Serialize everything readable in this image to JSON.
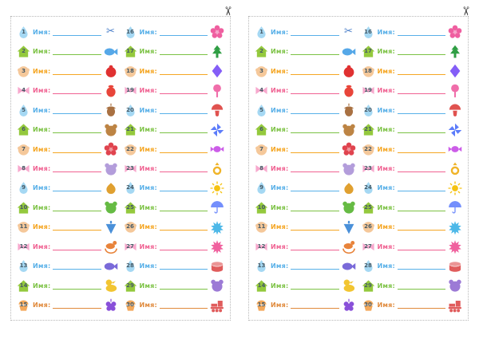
{
  "sheet": {
    "label_word": "Имя:"
  },
  "cut_mark": {
    "glyph": "✂"
  },
  "badges": {
    "drop": {
      "shape": "drop",
      "color": "#a5d8f3"
    },
    "house": {
      "shape": "house",
      "color": "#94c93d"
    },
    "face": {
      "shape": "face",
      "color": "#f5c89a"
    },
    "bow": {
      "shape": "bow",
      "color": "#f7a8cd"
    },
    "cupcake": {
      "shape": "cupcake",
      "color": "#f3a95c"
    }
  },
  "icons": {
    "scissors": {
      "glyph": "✂",
      "color": "#4a7fc9"
    },
    "flower": {
      "shape": "flower",
      "color": "#ef5fa0"
    },
    "whale": {
      "shape": "fish",
      "color": "#56a8e8"
    },
    "tree": {
      "shape": "tree",
      "color": "#2f9e44"
    },
    "ladybug": {
      "shape": "bug",
      "color": "#e03131"
    },
    "kite": {
      "shape": "kite",
      "color": "#845ef7"
    },
    "strawberry": {
      "shape": "berry",
      "color": "#e8453a"
    },
    "rattle": {
      "shape": "rattle",
      "color": "#f06eaa"
    },
    "acorn": {
      "shape": "acorn",
      "color": "#a97142"
    },
    "mushroom": {
      "shape": "mushroom",
      "color": "#e0524f"
    },
    "teddy-bear": {
      "shape": "animal",
      "color": "#bd8444"
    },
    "pinwheel": {
      "shape": "pinwheel",
      "color": "#5c7cfa"
    },
    "flower-pot": {
      "shape": "flower",
      "color": "#e0444f"
    },
    "candy": {
      "shape": "candy",
      "color": "#cc5de8"
    },
    "elephant": {
      "shape": "animal",
      "color": "#b39ddb"
    },
    "ring": {
      "shape": "ring",
      "color": "#f0b429"
    },
    "onion": {
      "shape": "blob",
      "color": "#e0a030"
    },
    "sun": {
      "shape": "sun",
      "color": "#f5c211"
    },
    "frog": {
      "shape": "animal",
      "color": "#66bb44"
    },
    "umbrella": {
      "shape": "umbrella",
      "color": "#748ffc"
    },
    "spinning-top": {
      "shape": "top",
      "color": "#4a90d9"
    },
    "splash": {
      "shape": "splash",
      "color": "#4db8e8"
    },
    "rocking-horse": {
      "shape": "horse",
      "color": "#e8833a"
    },
    "paint-splat": {
      "shape": "splash",
      "color": "#f0619e"
    },
    "fish": {
      "shape": "fish",
      "color": "#7a6ad9"
    },
    "drum": {
      "shape": "drum",
      "color": "#e05c5c"
    },
    "duck": {
      "shape": "duck",
      "color": "#f2c531"
    },
    "mouse": {
      "shape": "animal",
      "color": "#9c7ad6"
    },
    "grapes": {
      "shape": "grapes",
      "color": "#8950d9"
    },
    "train": {
      "shape": "train",
      "color": "#e05c5c"
    }
  },
  "rows": [
    {
      "badge": "drop",
      "color": "#58b0e8",
      "left": {
        "num": "1",
        "icon": "scissors"
      },
      "right": {
        "num": "16",
        "icon": "flower"
      }
    },
    {
      "badge": "house",
      "color": "#7cc244",
      "left": {
        "num": "2",
        "icon": "whale"
      },
      "right": {
        "num": "17",
        "icon": "tree"
      }
    },
    {
      "badge": "face",
      "color": "#f5a623",
      "left": {
        "num": "3",
        "icon": "ladybug"
      },
      "right": {
        "num": "18",
        "icon": "kite"
      }
    },
    {
      "badge": "bow",
      "color": "#f06292",
      "left": {
        "num": "4",
        "icon": "strawberry"
      },
      "right": {
        "num": "19",
        "icon": "rattle"
      }
    },
    {
      "badge": "drop",
      "color": "#58b0e8",
      "left": {
        "num": "5",
        "icon": "acorn"
      },
      "right": {
        "num": "20",
        "icon": "mushroom"
      }
    },
    {
      "badge": "house",
      "color": "#7cc244",
      "left": {
        "num": "6",
        "icon": "teddy-bear"
      },
      "right": {
        "num": "21",
        "icon": "pinwheel"
      }
    },
    {
      "badge": "face",
      "color": "#f5a623",
      "left": {
        "num": "7",
        "icon": "flower-pot"
      },
      "right": {
        "num": "22",
        "icon": "candy"
      }
    },
    {
      "badge": "bow",
      "color": "#f06292",
      "left": {
        "num": "8",
        "icon": "elephant"
      },
      "right": {
        "num": "23",
        "icon": "ring"
      }
    },
    {
      "badge": "drop",
      "color": "#58b0e8",
      "left": {
        "num": "9",
        "icon": "onion"
      },
      "right": {
        "num": "24",
        "icon": "sun"
      }
    },
    {
      "badge": "house",
      "color": "#7cc244",
      "left": {
        "num": "10",
        "icon": "frog"
      },
      "right": {
        "num": "25",
        "icon": "umbrella"
      }
    },
    {
      "badge": "face",
      "color": "#f5a623",
      "left": {
        "num": "11",
        "icon": "spinning-top"
      },
      "right": {
        "num": "26",
        "icon": "splash"
      }
    },
    {
      "badge": "bow",
      "color": "#f06292",
      "left": {
        "num": "12",
        "icon": "rocking-horse"
      },
      "right": {
        "num": "27",
        "icon": "paint-splat"
      }
    },
    {
      "badge": "drop",
      "color": "#58b0e8",
      "left": {
        "num": "13",
        "icon": "fish"
      },
      "right": {
        "num": "28",
        "icon": "drum"
      }
    },
    {
      "badge": "house",
      "color": "#7cc244",
      "left": {
        "num": "14",
        "icon": "duck"
      },
      "right": {
        "num": "29",
        "icon": "mouse"
      }
    },
    {
      "badge": "cupcake",
      "color": "#e08a3c",
      "left": {
        "num": "15",
        "icon": "grapes"
      },
      "right": {
        "num": "30",
        "icon": "train"
      }
    }
  ]
}
